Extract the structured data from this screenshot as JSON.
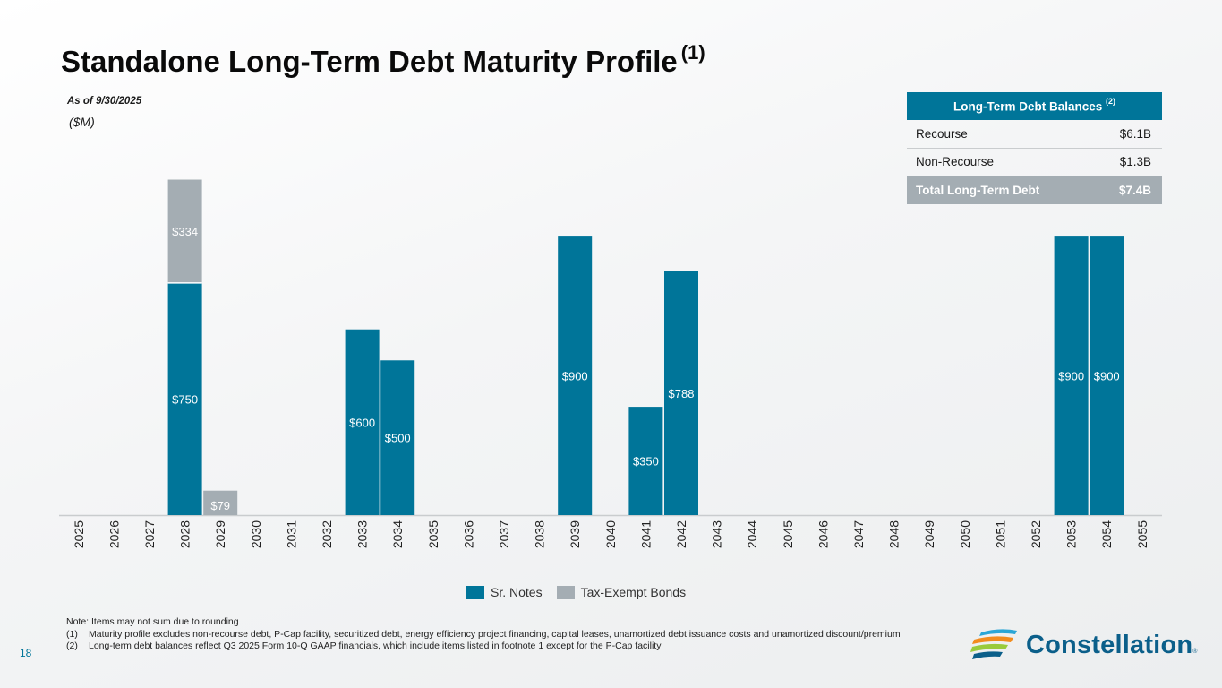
{
  "header": {
    "title": "Standalone Long-Term Debt Maturity Profile",
    "title_note": "(1)",
    "as_of": "As of 9/30/2025",
    "units": "($M)"
  },
  "debt_table": {
    "header": "Long-Term Debt Balances",
    "header_note": "(2)",
    "rows": [
      {
        "label": "Recourse",
        "value": "$6.1B"
      },
      {
        "label": "Non-Recourse",
        "value": "$1.3B"
      }
    ],
    "total": {
      "label": "Total Long-Term Debt",
      "value": "$7.4B"
    }
  },
  "colors": {
    "sr_notes": "#007599",
    "tax_exempt": "#a4adb3",
    "axis": "#c9ccce"
  },
  "chart_data": {
    "type": "bar",
    "stacked": true,
    "title": "Standalone Long-Term Debt Maturity Profile",
    "ylabel": "($M)",
    "ylim": [
      0,
      1100
    ],
    "categories": [
      "2025",
      "2026",
      "2027",
      "2028",
      "2029",
      "2030",
      "2031",
      "2032",
      "2033",
      "2034",
      "2035",
      "2036",
      "2037",
      "2038",
      "2039",
      "2040",
      "2041",
      "2042",
      "2043",
      "2044",
      "2045",
      "2046",
      "2047",
      "2048",
      "2049",
      "2050",
      "2051",
      "2052",
      "2053",
      "2054",
      "2055"
    ],
    "series": [
      {
        "name": "Sr. Notes",
        "values": [
          0,
          0,
          0,
          750,
          0,
          0,
          0,
          0,
          600,
          500,
          0,
          0,
          0,
          0,
          900,
          0,
          350,
          788,
          0,
          0,
          0,
          0,
          0,
          0,
          0,
          0,
          0,
          0,
          900,
          900,
          0
        ]
      },
      {
        "name": "Tax-Exempt Bonds",
        "values": [
          0,
          0,
          0,
          334,
          79,
          0,
          0,
          0,
          0,
          0,
          0,
          0,
          0,
          0,
          0,
          0,
          0,
          0,
          0,
          0,
          0,
          0,
          0,
          0,
          0,
          0,
          0,
          0,
          0,
          0,
          0
        ]
      }
    ],
    "labels": {
      "Sr. Notes": {
        "2028": "$750",
        "2033": "$600",
        "2034": "$500",
        "2039": "$900",
        "2041": "$350",
        "2042": "$788",
        "2053": "$900",
        "2054": "$900"
      },
      "Tax-Exempt Bonds": {
        "2028": "$334",
        "2029": "$79"
      }
    },
    "legend_position": "bottom-center"
  },
  "legend": {
    "sr_notes": "Sr. Notes",
    "tax_exempt": "Tax-Exempt Bonds"
  },
  "notes": {
    "intro": "Note: Items may not sum due to rounding",
    "items": [
      {
        "num": "(1)",
        "text": "Maturity profile excludes non-recourse debt, P-Cap facility, securitized debt, energy efficiency project financing, capital leases, unamortized debt issuance costs and unamortized discount/premium"
      },
      {
        "num": "(2)",
        "text": "Long-term debt balances reflect Q3 2025 Form 10-Q GAAP financials, which include items listed in footnote 1 except for the P-Cap facility"
      }
    ]
  },
  "page_number": "18",
  "logo": {
    "name": "Constellation",
    "reg": "®"
  }
}
